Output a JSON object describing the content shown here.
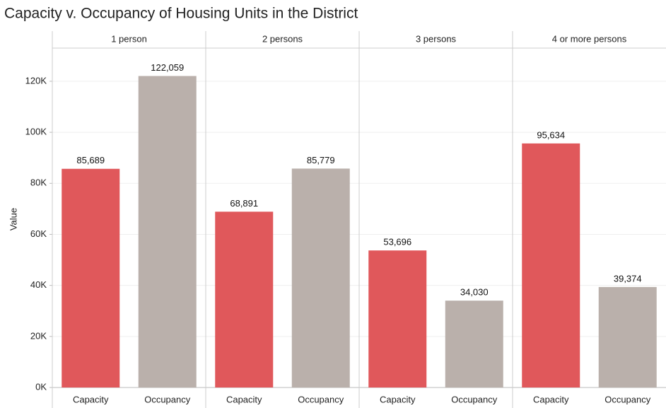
{
  "chart_data": {
    "type": "bar",
    "title": "Capacity v. Occupancy of Housing Units in the District",
    "y_label": "Value",
    "categories": [
      "1 person",
      "2 persons",
      "3 persons",
      "4 or more persons"
    ],
    "series": [
      {
        "name": "Capacity",
        "color": "#e0585b",
        "values": [
          85689,
          68891,
          53696,
          95634
        ],
        "value_labels": [
          "85,689",
          "68,891",
          "53,696",
          "95,634"
        ]
      },
      {
        "name": "Occupancy",
        "color": "#bab0ab",
        "values": [
          122059,
          85779,
          34030,
          39374
        ],
        "value_labels": [
          "122,059",
          "85,779",
          "34,030",
          "39,374"
        ]
      }
    ],
    "ylim": [
      0,
      133000
    ],
    "yticks": [
      {
        "value": 0,
        "label": "0K"
      },
      {
        "value": 20000,
        "label": "20K"
      },
      {
        "value": 40000,
        "label": "40K"
      },
      {
        "value": 60000,
        "label": "60K"
      },
      {
        "value": 80000,
        "label": "80K"
      },
      {
        "value": 100000,
        "label": "100K"
      },
      {
        "value": 120000,
        "label": "120K"
      }
    ],
    "grid": true
  }
}
